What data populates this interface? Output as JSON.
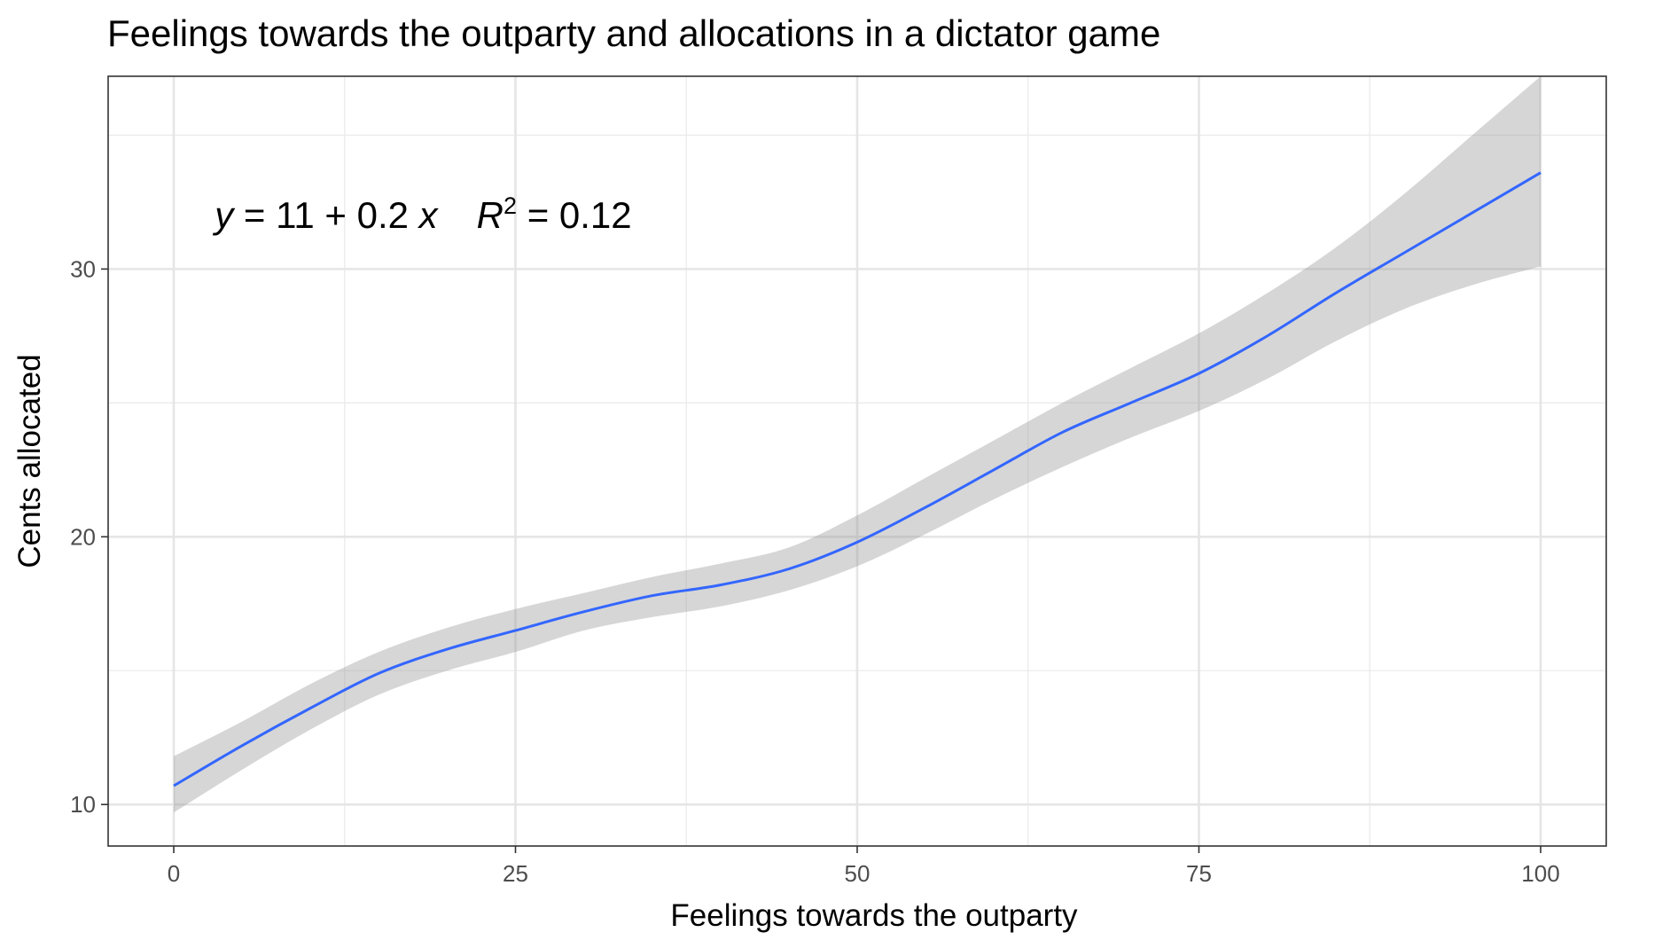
{
  "chart_data": {
    "type": "line",
    "title": "Feelings towards the outparty and allocations in a dictator game",
    "xlabel": "Feelings towards the outparty",
    "ylabel": "Cents allocated",
    "xlim": [
      -4.8,
      104.8
    ],
    "ylim": [
      8.45,
      37.2
    ],
    "x_ticks": [
      0,
      25,
      50,
      75,
      100
    ],
    "x_tick_labels": [
      "0",
      "25",
      "50",
      "75",
      "100"
    ],
    "y_ticks": [
      10,
      20,
      30
    ],
    "y_tick_labels": [
      "10",
      "20",
      "30"
    ],
    "grid": true,
    "legend": "none",
    "annotation": {
      "y_var": "y",
      "eq_body": " = 11 + 0.2 ",
      "x_var": "x",
      "r_var": "R",
      "r_exp": "2",
      "r_value": " = 0.12",
      "x": 3,
      "y": 32
    },
    "series": [
      {
        "color": "#3366ff",
        "ribbon_color": "#999999",
        "x": [
          0,
          5,
          10,
          15,
          20,
          25,
          30,
          35,
          40,
          45,
          50,
          55,
          60,
          65,
          70,
          75,
          80,
          85,
          90,
          95,
          100
        ],
        "y": [
          10.7,
          12.2,
          13.6,
          14.9,
          15.8,
          16.5,
          17.2,
          17.8,
          18.2,
          18.8,
          19.8,
          21.1,
          22.5,
          23.9,
          25.0,
          26.1,
          27.5,
          29.1,
          30.6,
          32.1,
          33.6
        ],
        "ci_low": [
          9.7,
          11.3,
          12.8,
          14.1,
          15.0,
          15.7,
          16.5,
          17.0,
          17.4,
          18.0,
          18.9,
          20.1,
          21.4,
          22.6,
          23.7,
          24.7,
          25.9,
          27.3,
          28.5,
          29.4,
          30.1
        ],
        "ci_high": [
          11.8,
          13.1,
          14.5,
          15.7,
          16.6,
          17.3,
          17.9,
          18.5,
          19.0,
          19.6,
          20.8,
          22.2,
          23.6,
          25.0,
          26.3,
          27.6,
          29.1,
          30.8,
          32.8,
          35.0,
          37.2
        ]
      }
    ]
  }
}
